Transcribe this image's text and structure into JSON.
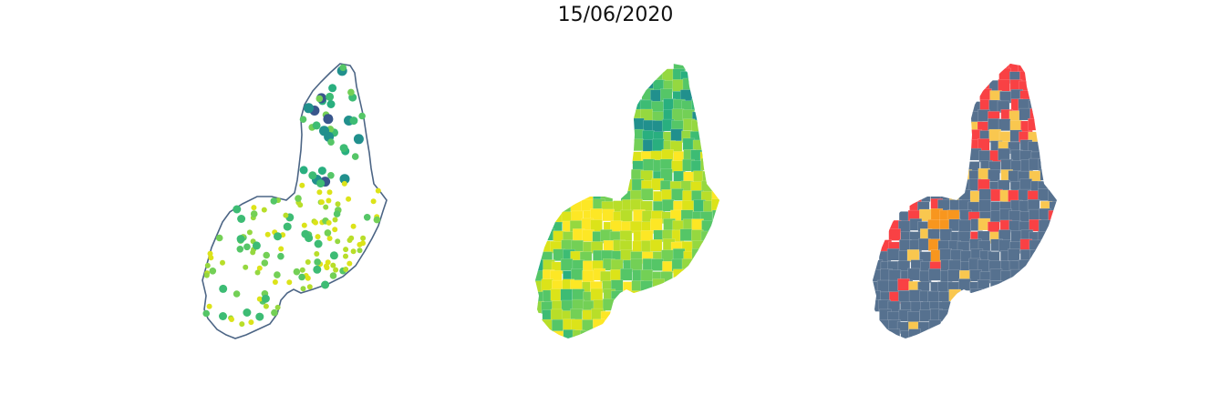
{
  "title": "15/06/2020",
  "colors": {
    "outline": "#4c6585",
    "viridis": [
      "#39568c",
      "#21908d",
      "#29af7f",
      "#3dbc74",
      "#55c667",
      "#73d056",
      "#95d840",
      "#b8de29",
      "#dce319",
      "#fde725"
    ],
    "risk_none": "#56718f",
    "risk_medium": "#f9c74f",
    "risk_high": "#f8961e",
    "risk_very_high": "#f94144",
    "background": "#ffffff"
  },
  "panels": [
    {
      "id": "points",
      "type": "proportional-symbols"
    },
    {
      "id": "choropleth",
      "type": "choropleth-viridis"
    },
    {
      "id": "risk",
      "type": "choropleth-categorical"
    }
  ]
}
